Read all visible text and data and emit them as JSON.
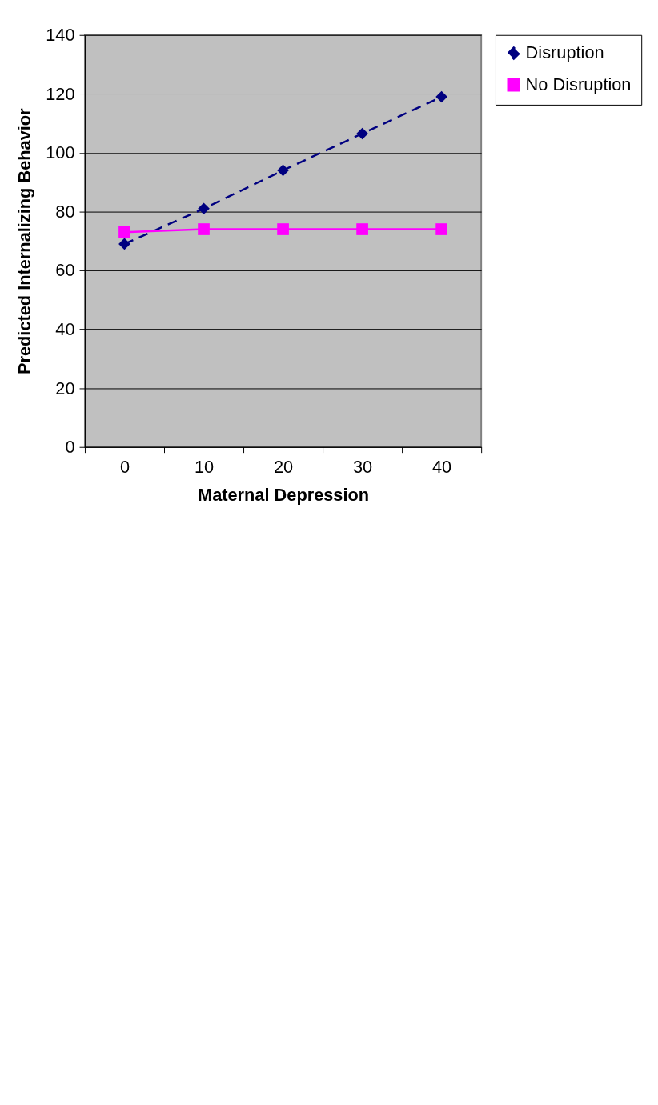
{
  "chart_data": {
    "type": "line",
    "xlabel": "Maternal Depression",
    "ylabel": "Predicted Internalizing Behavior",
    "categories": [
      "0",
      "10",
      "20",
      "30",
      "40"
    ],
    "series": [
      {
        "name": "Disruption",
        "color": "#000080",
        "marker": "diamond",
        "line_style": "dashed",
        "values": [
          69,
          81,
          94,
          106.5,
          119
        ]
      },
      {
        "name": "No Disruption",
        "color": "#ff00ff",
        "marker": "square",
        "line_style": "solid",
        "values": [
          73,
          74,
          74,
          74,
          74
        ]
      }
    ],
    "ylim": [
      0,
      140
    ],
    "yticks": [
      0,
      20,
      40,
      60,
      80,
      100,
      120,
      140
    ],
    "grid": "y",
    "legend": "right"
  }
}
